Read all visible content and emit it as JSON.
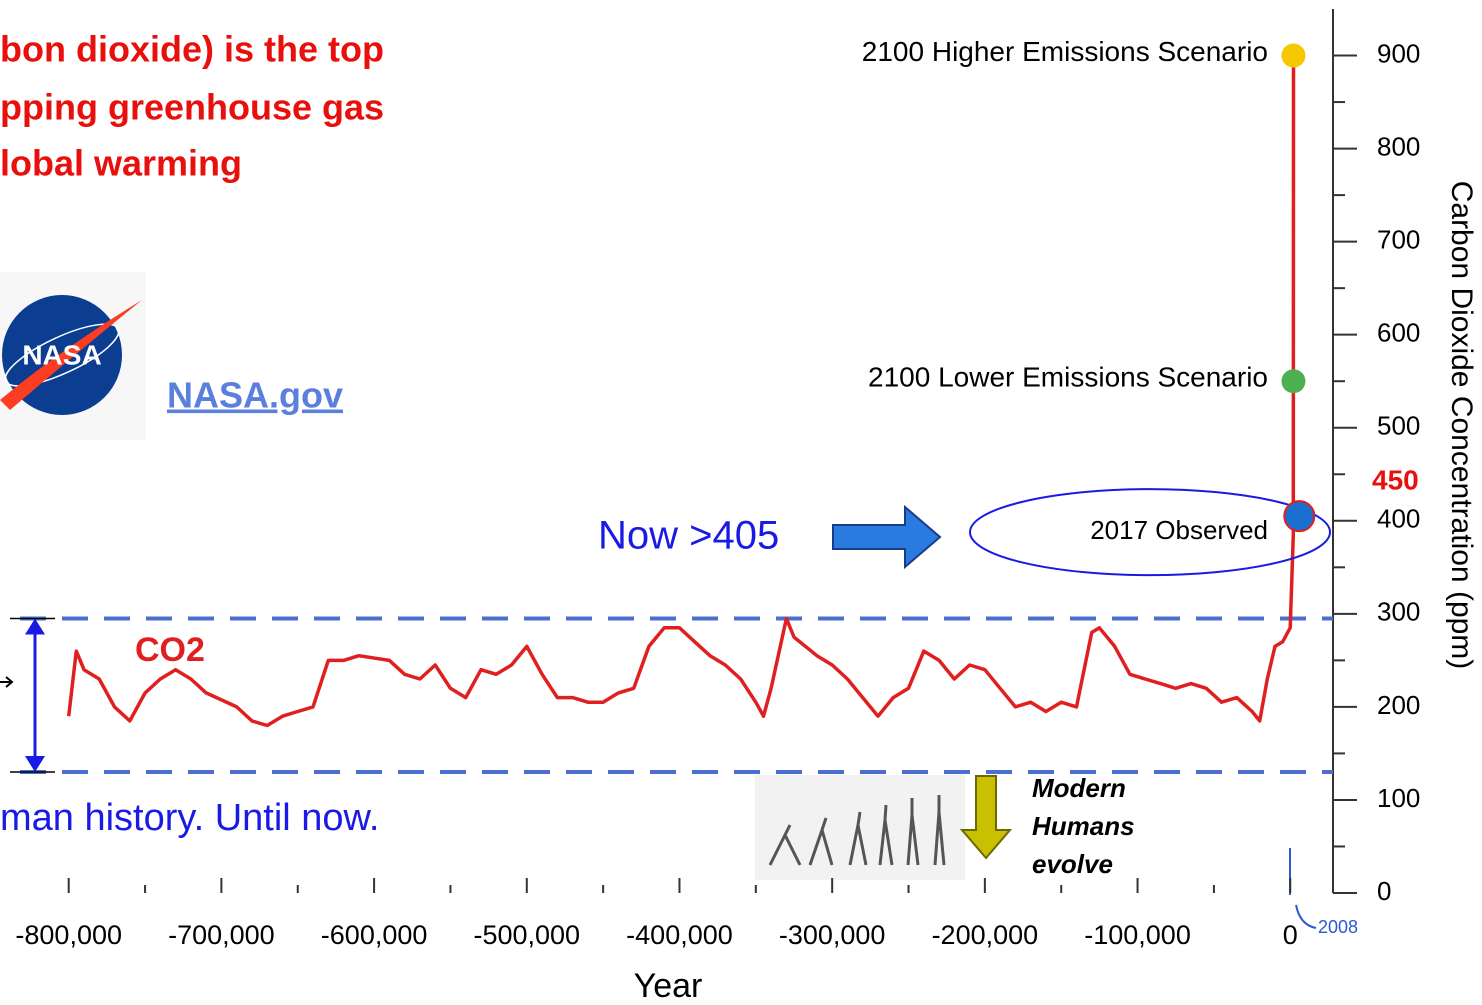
{
  "chart_data": {
    "type": "line",
    "title_lines": [
      "bon dioxide) is the top",
      "pping greenhouse gas",
      "lobal warming"
    ],
    "link": "NASA.gov",
    "logo_text": "NASA",
    "caption": "man history. Until now.",
    "now_label": "Now >405",
    "threshold_label": "450",
    "modern_humans": [
      "Modern",
      "Humans",
      "evolve"
    ],
    "year_marker": "2008",
    "xlabel": "Year",
    "ylabel": "Carbon Dioxide Concentration (ppm)",
    "xlim": [
      -845000,
      28000
    ],
    "ylim": [
      0,
      950
    ],
    "xticks": [
      {
        "value": -800000,
        "label": "-800,000"
      },
      {
        "value": -700000,
        "label": "-700,000"
      },
      {
        "value": -600000,
        "label": "-600,000"
      },
      {
        "value": -500000,
        "label": "-500,000"
      },
      {
        "value": -400000,
        "label": "-400,000"
      },
      {
        "value": -300000,
        "label": "-300,000"
      },
      {
        "value": -200000,
        "label": "-200,000"
      },
      {
        "value": -100000,
        "label": "-100,000"
      },
      0
    ],
    "xminorticks": [
      -750000,
      -650000,
      -550000,
      -450000,
      -350000,
      -250000,
      -150000,
      -50000
    ],
    "yticks": [
      0,
      100,
      200,
      300,
      400,
      500,
      600,
      700,
      800,
      900
    ],
    "yminorticks": [
      50,
      150,
      250,
      350,
      450,
      550,
      650,
      750,
      850
    ],
    "reference_lines": [
      295,
      130
    ],
    "series": [
      {
        "name": "CO2",
        "color": "#e02020",
        "x": [
          -800000,
          -795000,
          -790000,
          -780000,
          -770000,
          -760000,
          -750000,
          -740000,
          -730000,
          -720000,
          -710000,
          -690000,
          -680000,
          -670000,
          -660000,
          -650000,
          -640000,
          -630000,
          -620000,
          -610000,
          -590000,
          -580000,
          -570000,
          -560000,
          -550000,
          -540000,
          -530000,
          -520000,
          -510000,
          -500000,
          -490000,
          -480000,
          -470000,
          -460000,
          -450000,
          -440000,
          -430000,
          -420000,
          -410000,
          -400000,
          -390000,
          -380000,
          -370000,
          -360000,
          -350000,
          -345000,
          -340000,
          -330000,
          -325000,
          -310000,
          -300000,
          -290000,
          -280000,
          -270000,
          -260000,
          -250000,
          -240000,
          -230000,
          -220000,
          -210000,
          -200000,
          -190000,
          -180000,
          -170000,
          -160000,
          -150000,
          -140000,
          -130000,
          -125000,
          -115000,
          -105000,
          -95000,
          -85000,
          -75000,
          -65000,
          -55000,
          -45000,
          -35000,
          -25000,
          -20000,
          -15000,
          -10000,
          -5000,
          0,
          2008,
          2100
        ],
        "values": [
          190,
          260,
          240,
          230,
          200,
          185,
          215,
          230,
          240,
          230,
          215,
          200,
          185,
          180,
          190,
          195,
          200,
          250,
          250,
          255,
          250,
          235,
          230,
          245,
          220,
          210,
          240,
          235,
          245,
          265,
          235,
          210,
          210,
          205,
          205,
          215,
          220,
          265,
          285,
          285,
          270,
          255,
          245,
          230,
          205,
          190,
          220,
          295,
          275,
          255,
          245,
          230,
          210,
          190,
          210,
          220,
          260,
          250,
          230,
          245,
          240,
          220,
          200,
          205,
          195,
          205,
          200,
          280,
          285,
          265,
          235,
          230,
          225,
          220,
          225,
          220,
          205,
          210,
          195,
          185,
          230,
          265,
          270,
          285,
          385,
          900
        ]
      }
    ],
    "points": [
      {
        "label": "2100 Higher Emissions Scenario",
        "x": 2100,
        "value": 900,
        "color": "#f5c800"
      },
      {
        "label": "2100 Lower Emissions Scenario",
        "x": 2100,
        "value": 550,
        "color": "#4caf50"
      },
      {
        "label": "2017 Observed",
        "x": 2017,
        "value": 405,
        "color": "#1a6fd0"
      }
    ]
  }
}
